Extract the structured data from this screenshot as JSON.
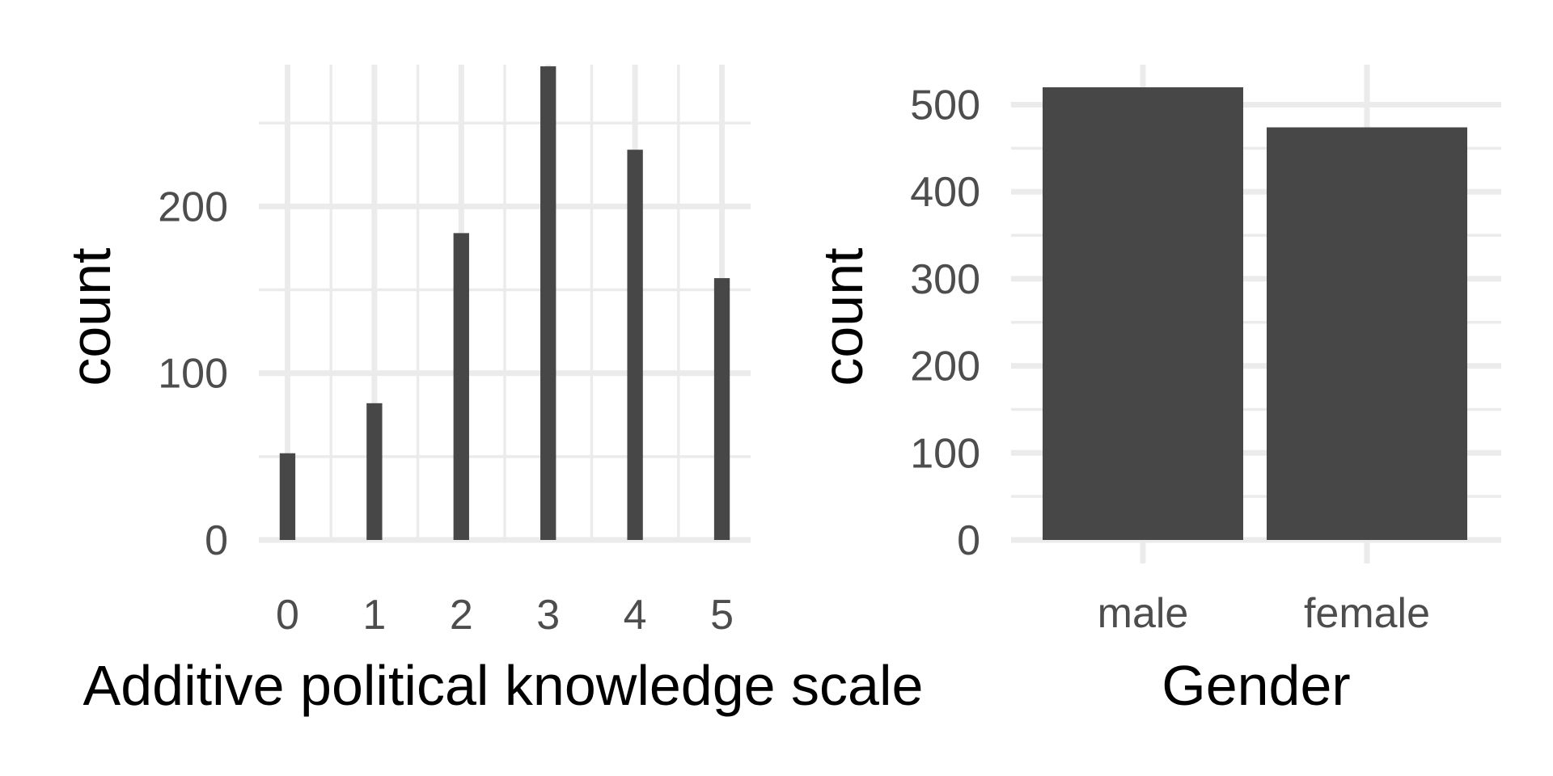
{
  "colors": {
    "bar": "#474747",
    "grid": "#ebebeb",
    "tick_text": "#4d4d4d",
    "title_text": "#000000",
    "background": "#ffffff"
  },
  "chart_data": [
    {
      "type": "bar",
      "categories": [
        "0",
        "1",
        "2",
        "3",
        "4",
        "5"
      ],
      "values": [
        52,
        82,
        184,
        284,
        234,
        157
      ],
      "xlabel": "Additive political knowledge scale",
      "ylabel": "count",
      "xlim": [
        -0.33,
        5.33
      ],
      "ylim": [
        0,
        285
      ],
      "y_ticks": [
        "0",
        "100",
        "200"
      ],
      "y_tick_values": [
        0,
        100,
        200
      ],
      "x_ticks": [
        "0",
        "1",
        "2",
        "3",
        "4",
        "5"
      ],
      "grid": true,
      "legend": "none"
    },
    {
      "type": "bar",
      "categories": [
        "male",
        "female"
      ],
      "values": [
        520,
        474
      ],
      "xlabel": "Gender",
      "ylabel": "count",
      "ylim": [
        0,
        520
      ],
      "y_ticks": [
        "0",
        "100",
        "200",
        "300",
        "400",
        "500"
      ],
      "y_tick_values": [
        0,
        100,
        200,
        300,
        400,
        500
      ],
      "x_ticks": [
        "male",
        "female"
      ],
      "grid": true,
      "legend": "none"
    }
  ]
}
